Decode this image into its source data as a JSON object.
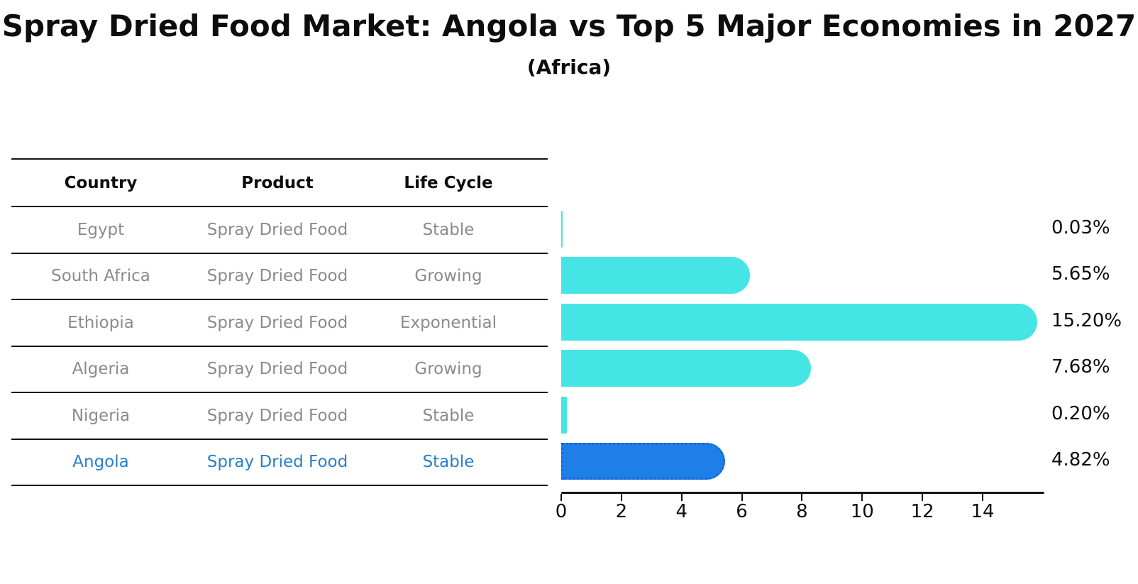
{
  "title": "Spray Dried Food Market: Angola vs Top 5 Major Economies in 2027",
  "subtitle": "(Africa)",
  "table": {
    "headers": [
      "Country",
      "Product",
      "Life Cycle"
    ],
    "rows": [
      {
        "country": "Egypt",
        "product": "Spray Dried Food",
        "life_cycle": "Stable",
        "highlighted": false
      },
      {
        "country": "South Africa",
        "product": "Spray Dried Food",
        "life_cycle": "Growing",
        "highlighted": false
      },
      {
        "country": "Ethiopia",
        "product": "Spray Dried Food",
        "life_cycle": "Exponential",
        "highlighted": false
      },
      {
        "country": "Algeria",
        "product": "Spray Dried Food",
        "life_cycle": "Growing",
        "highlighted": false
      },
      {
        "country": "Nigeria",
        "product": "Spray Dried Food",
        "life_cycle": "Stable",
        "highlighted": false
      },
      {
        "country": "Angola",
        "product": "Spray Dried Food",
        "life_cycle": "Stable",
        "highlighted": true
      }
    ]
  },
  "chart_data": {
    "type": "bar",
    "orientation": "horizontal",
    "categories": [
      "Egypt",
      "South Africa",
      "Ethiopia",
      "Algeria",
      "Nigeria",
      "Angola"
    ],
    "values": [
      0.03,
      5.65,
      15.2,
      7.68,
      0.2,
      4.82
    ],
    "value_labels": [
      "0.03%",
      "5.65%",
      "15.20%",
      "7.68%",
      "0.20%",
      "4.82%"
    ],
    "x_ticks": [
      "0",
      "2",
      "4",
      "6",
      "8",
      "10",
      "12",
      "14"
    ],
    "x_tick_values": [
      0,
      2,
      4,
      6,
      8,
      10,
      12,
      14
    ],
    "xlim": [
      0,
      16
    ],
    "grid": false,
    "legend": false,
    "highlight_index": 5,
    "colors": {
      "bar": "#46E5E5",
      "highlight_bar": "#1E7FE8",
      "highlight_bar_border": "#1566D6",
      "highlight_text": "#2980C9",
      "row_text": "#8B8B8B",
      "line": "#141414",
      "text": "#0D0D0D"
    }
  }
}
